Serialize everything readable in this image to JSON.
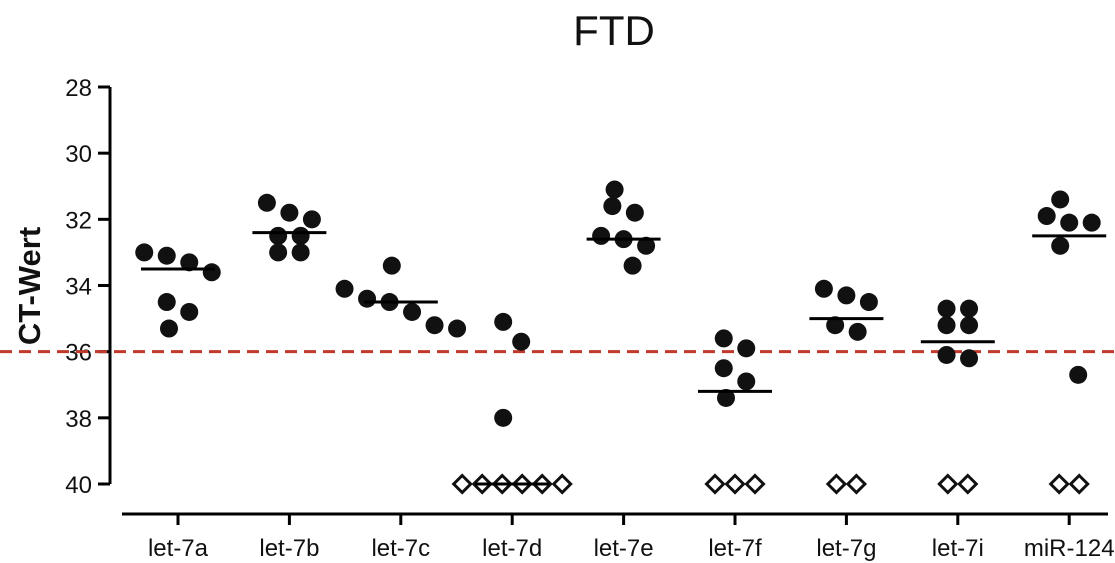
{
  "chart_data": {
    "type": "scatter",
    "title": "FTD",
    "xlabel": "",
    "ylabel": "CT-Wert",
    "ylim": [
      40,
      28
    ],
    "y_inverted": true,
    "yticks": [
      28,
      30,
      32,
      34,
      36,
      38,
      40
    ],
    "grid": false,
    "categories": [
      "let-7a",
      "let-7b",
      "let-7c",
      "let-7d",
      "let-7e",
      "let-7f",
      "let-7g",
      "let-7i",
      "miR-124"
    ],
    "threshold": {
      "value": 36,
      "color": "#c0392b",
      "style": "dashed"
    },
    "series": [
      {
        "category": "let-7a",
        "mean": 33.5,
        "detected": [
          33.0,
          33.1,
          33.3,
          33.6,
          34.5,
          34.8,
          35.3
        ],
        "undetected_count": 0
      },
      {
        "category": "let-7b",
        "mean": 32.4,
        "detected": [
          31.5,
          31.8,
          32.0,
          32.5,
          32.5,
          33.0,
          33.0
        ],
        "undetected_count": 0
      },
      {
        "category": "let-7c",
        "mean": 34.5,
        "detected": [
          33.4,
          34.1,
          34.4,
          34.5,
          34.8,
          35.2,
          35.3
        ],
        "undetected_count": 0
      },
      {
        "category": "let-7d",
        "mean": 40.0,
        "detected": [
          35.1,
          35.7,
          38.0
        ],
        "undetected_count": 6
      },
      {
        "category": "let-7e",
        "mean": 32.6,
        "detected": [
          31.1,
          31.6,
          31.8,
          32.5,
          32.6,
          32.8,
          33.4
        ],
        "undetected_count": 0
      },
      {
        "category": "let-7f",
        "mean": 37.2,
        "detected": [
          35.6,
          35.9,
          36.5,
          36.9,
          37.4
        ],
        "undetected_count": 3
      },
      {
        "category": "let-7g",
        "mean": 35.0,
        "detected": [
          34.1,
          34.3,
          34.5,
          35.2,
          35.4
        ],
        "undetected_count": 2
      },
      {
        "category": "let-7i",
        "mean": 35.7,
        "detected": [
          34.7,
          34.7,
          35.2,
          35.2,
          36.1,
          36.2
        ],
        "undetected_count": 2
      },
      {
        "category": "miR-124",
        "mean": 32.5,
        "detected": [
          31.4,
          31.9,
          32.1,
          32.1,
          32.8,
          36.7
        ],
        "undetected_count": 2
      }
    ],
    "markers": {
      "detected": "filled-circle",
      "undetected": "open-diamond",
      "mean": "horizontal-line"
    }
  }
}
